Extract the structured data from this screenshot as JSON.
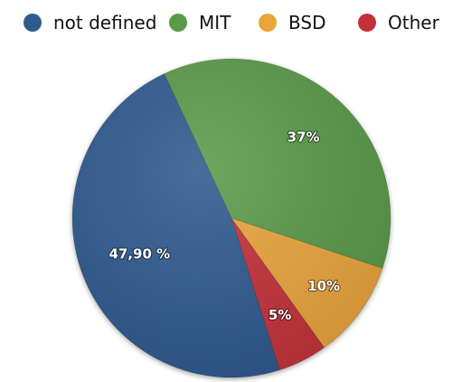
{
  "chart_data": {
    "type": "pie",
    "title": "",
    "legend": {
      "placement": "top"
    },
    "slices": [
      {
        "name": "not defined",
        "value": 47.9,
        "label": "47,90 %",
        "color": "#2f5a8e"
      },
      {
        "name": "MIT",
        "value": 37,
        "label": "37%",
        "color": "#5a9a48"
      },
      {
        "name": "BSD",
        "value": 10,
        "label": "10%",
        "color": "#e9a43c"
      },
      {
        "name": "Other",
        "value": 5,
        "label": "5%",
        "color": "#c3303a"
      }
    ]
  }
}
